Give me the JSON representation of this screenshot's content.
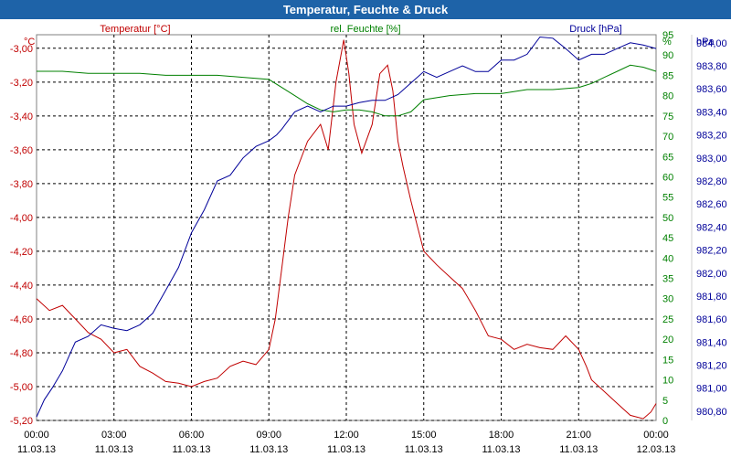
{
  "window": {
    "title": "Temperatur, Feuchte & Druck"
  },
  "colors": {
    "temperature": "#c00000",
    "humidity": "#008000",
    "pressure": "#000099",
    "titlebar": "#1e63a8",
    "grid": "#000000"
  },
  "chart_data": {
    "type": "line",
    "title": "Temperatur, Feuchte & Druck",
    "grid": true,
    "x_ticks": [
      {
        "time": "00:00",
        "date": "11.03.13"
      },
      {
        "time": "03:00",
        "date": "11.03.13"
      },
      {
        "time": "06:00",
        "date": "11.03.13"
      },
      {
        "time": "09:00",
        "date": "11.03.13"
      },
      {
        "time": "12:00",
        "date": "11.03.13"
      },
      {
        "time": "15:00",
        "date": "11.03.13"
      },
      {
        "time": "18:00",
        "date": "11.03.13"
      },
      {
        "time": "21:00",
        "date": "11.03.13"
      },
      {
        "time": "00:00",
        "date": "12.03.13"
      }
    ],
    "xlim": [
      0,
      24
    ],
    "axes": {
      "temperature": {
        "label": "Temperatur [°C]",
        "unit": "°C",
        "ylim": [
          -5.2,
          -2.92
        ],
        "ticks": [
          "-3,00",
          "-3,20",
          "-3,40",
          "-3,60",
          "-3,80",
          "-4,00",
          "-4,20",
          "-4,40",
          "-4,60",
          "-4,80",
          "-5,00",
          "-5,20"
        ]
      },
      "humidity": {
        "label": "rel. Feuchte [%]",
        "unit": "%",
        "ylim": [
          0,
          95
        ],
        "ticks": [
          "95",
          "90",
          "85",
          "80",
          "75",
          "70",
          "65",
          "60",
          "55",
          "50",
          "45",
          "40",
          "35",
          "30",
          "25",
          "20",
          "15",
          "10",
          "5",
          "0"
        ]
      },
      "pressure": {
        "label": "Druck [hPa]",
        "unit": "hPa",
        "ylim": [
          980.72,
          984.07
        ],
        "ticks": [
          "984,00",
          "983,80",
          "983,60",
          "983,40",
          "983,20",
          "983,00",
          "982,80",
          "982,60",
          "982,40",
          "982,20",
          "982,00",
          "981,80",
          "981,60",
          "981,40",
          "981,20",
          "981,00",
          "980,80"
        ]
      }
    },
    "series": [
      {
        "name": "Temperatur [°C]",
        "axis": "temperature",
        "x": [
          0,
          0.5,
          1,
          1.5,
          2,
          2.5,
          3,
          3.5,
          4,
          4.5,
          5,
          5.5,
          6,
          6.5,
          7,
          7.5,
          8,
          8.5,
          9,
          9.25,
          9.5,
          9.75,
          10,
          10.5,
          11,
          11.3,
          11.6,
          11.9,
          12.1,
          12.3,
          12.6,
          13,
          13.3,
          13.6,
          13.8,
          14,
          14.2,
          14.5,
          15,
          15.5,
          16,
          16.5,
          17,
          17.5,
          18,
          18.5,
          19,
          19.5,
          20,
          20.5,
          21,
          21.3,
          21.5,
          22,
          22.5,
          23,
          23.5,
          23.8,
          24
        ],
        "values": [
          -4.48,
          -4.55,
          -4.52,
          -4.6,
          -4.68,
          -4.72,
          -4.8,
          -4.78,
          -4.88,
          -4.92,
          -4.97,
          -4.98,
          -5.0,
          -4.97,
          -4.95,
          -4.88,
          -4.85,
          -4.87,
          -4.78,
          -4.6,
          -4.3,
          -4.0,
          -3.75,
          -3.55,
          -3.45,
          -3.6,
          -3.2,
          -2.95,
          -3.15,
          -3.45,
          -3.62,
          -3.45,
          -3.15,
          -3.1,
          -3.25,
          -3.55,
          -3.7,
          -3.9,
          -4.2,
          -4.28,
          -4.35,
          -4.42,
          -4.55,
          -4.7,
          -4.72,
          -4.78,
          -4.75,
          -4.77,
          -4.78,
          -4.7,
          -4.78,
          -4.88,
          -4.96,
          -5.03,
          -5.1,
          -5.17,
          -5.19,
          -5.15,
          -5.1
        ]
      },
      {
        "name": "rel. Feuchte [%]",
        "axis": "humidity",
        "x": [
          0,
          1,
          2,
          3,
          4,
          5,
          6,
          7,
          8,
          9,
          9.5,
          10,
          10.5,
          11,
          11.5,
          12,
          12.5,
          13,
          13.5,
          14,
          14.5,
          15,
          16,
          17,
          18,
          19,
          20,
          21,
          21.5,
          22,
          22.5,
          23,
          23.5,
          24
        ],
        "values": [
          86,
          86,
          85.5,
          85.5,
          85.5,
          85,
          85,
          85,
          84.5,
          84,
          82,
          80,
          78,
          76.5,
          76,
          76.5,
          76.5,
          76,
          75,
          75,
          76,
          79,
          80,
          80.5,
          80.5,
          81.5,
          81.5,
          82,
          83,
          84.5,
          86,
          87.5,
          87,
          86
        ]
      },
      {
        "name": "Druck [hPa]",
        "axis": "pressure",
        "x": [
          0,
          0.3,
          0.6,
          1,
          1.5,
          2,
          2.5,
          3,
          3.5,
          4,
          4.5,
          5,
          5.5,
          6,
          6.5,
          7,
          7.5,
          8,
          8.5,
          9,
          9.3,
          9.5,
          10,
          10.5,
          11,
          11.5,
          12,
          12.5,
          13,
          13.5,
          14,
          14.5,
          15,
          15.5,
          16,
          16.5,
          17,
          17.5,
          18,
          18.5,
          19,
          19.5,
          20,
          20.5,
          21,
          21.5,
          22,
          22.5,
          23,
          23.5,
          24
        ],
        "values": [
          980.75,
          980.9,
          981.0,
          981.15,
          981.4,
          981.45,
          981.55,
          981.52,
          981.5,
          981.55,
          981.65,
          981.85,
          982.05,
          982.35,
          982.55,
          982.8,
          982.85,
          983.0,
          983.1,
          983.15,
          983.2,
          983.25,
          983.4,
          983.45,
          983.4,
          983.45,
          983.45,
          983.48,
          983.5,
          983.5,
          983.55,
          983.65,
          983.75,
          983.7,
          983.75,
          983.8,
          983.75,
          983.75,
          983.85,
          983.85,
          983.9,
          984.05,
          984.04,
          983.95,
          983.85,
          983.9,
          983.9,
          983.95,
          984.0,
          983.98,
          983.95
        ]
      }
    ]
  }
}
